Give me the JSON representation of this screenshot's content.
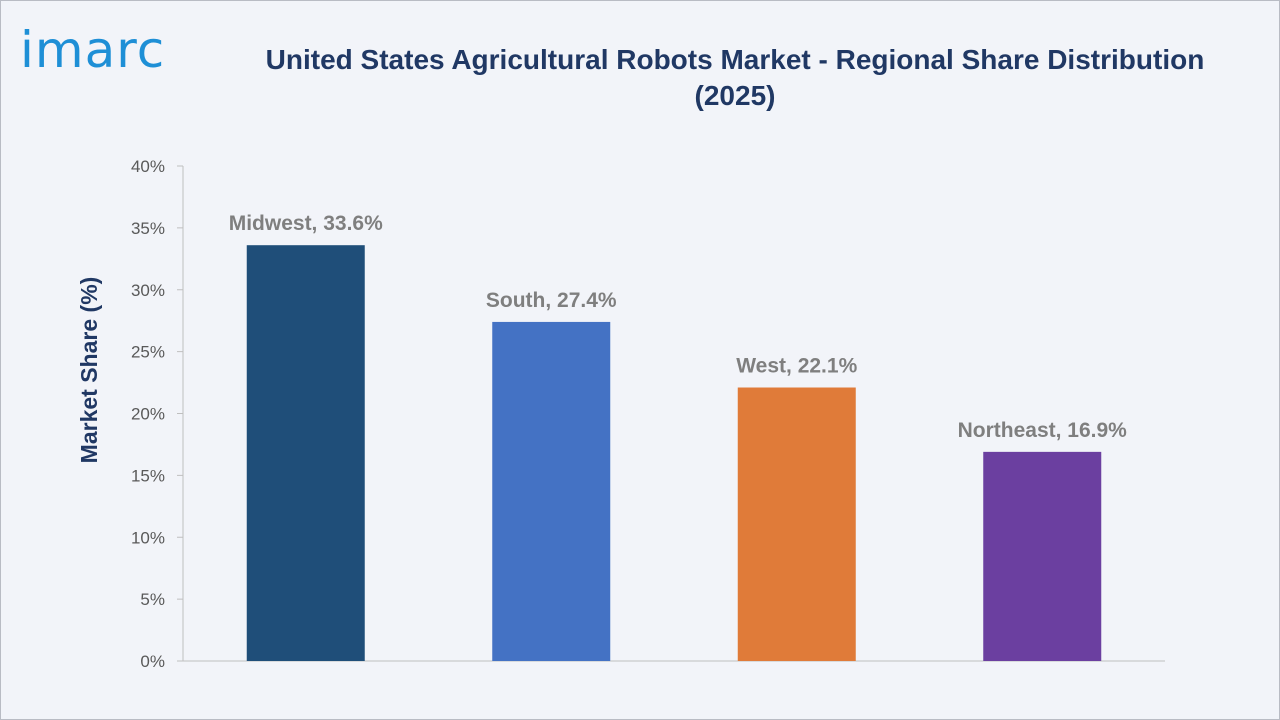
{
  "brand": {
    "logo_text": "imarc"
  },
  "chart_data": {
    "type": "bar",
    "title": "United States Agricultural Robots Market - Regional Share Distribution (2025)",
    "xlabel": "",
    "ylabel": "Market Share (%)",
    "categories": [
      "Midwest",
      "South",
      "West",
      "Northeast"
    ],
    "values": [
      33.6,
      27.4,
      22.1,
      16.9
    ],
    "data_labels": [
      "Midwest, 33.6%",
      "South, 27.4%",
      "West, 22.1%",
      "Northeast, 16.9%"
    ],
    "colors": [
      "#1f4e79",
      "#4472c4",
      "#e07b39",
      "#6b3fa0"
    ],
    "ylim": [
      0,
      40
    ],
    "yticks": [
      0,
      5,
      10,
      15,
      20,
      25,
      30,
      35,
      40
    ],
    "ytick_labels": [
      "0%",
      "5%",
      "10%",
      "15%",
      "20%",
      "25%",
      "30%",
      "35%",
      "40%"
    ],
    "grid": false,
    "legend": "none"
  }
}
